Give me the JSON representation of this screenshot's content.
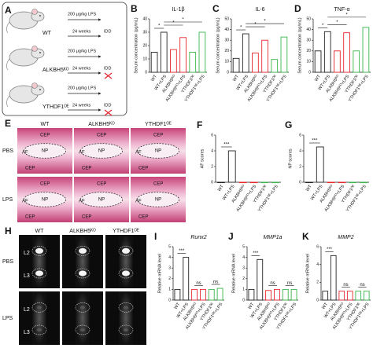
{
  "schematic": {
    "letter": "A",
    "groups": [
      "WT",
      "ALKBH5ᴷᴼ",
      "YTHDF1ᴼᴱ"
    ],
    "treatment": "200 μg/kg LPS",
    "duration": "24 weeks",
    "outcome": "IDD"
  },
  "histology": {
    "letter": "E",
    "columns": [
      "WT",
      "ALKBH5ᴷᴼ",
      "YTHDF1ᴼᴱ"
    ],
    "rows": [
      "PBS",
      "LPS"
    ],
    "regions": {
      "np": "NP",
      "af": "AF",
      "cep": "CEP"
    }
  },
  "mri": {
    "letter": "H",
    "columns": [
      "WT",
      "ALKBH5ᴷᴼ",
      "YTHDF1ᴼᴱ"
    ],
    "rows": [
      "PBS",
      "LPS"
    ],
    "levels": [
      "L2",
      "L3"
    ]
  },
  "chart_data": [
    {
      "type": "bar",
      "letter": "B",
      "title": "IL-1β",
      "ylabel": "Serum concentration (pg/mL)",
      "categories": [
        "WT",
        "WT+LPS",
        "ALKBH5ᴷᴼ",
        "ALKBH5ᴷᴼ+LPS",
        "YTHDF1ᴼᴱ",
        "YTHDF1ᴼᴱ+LPS"
      ],
      "values": [
        15,
        30,
        17,
        26,
        15,
        30
      ],
      "colors": [
        "#222222",
        "#222222",
        "#e8262c",
        "#e8262c",
        "#39b54a",
        "#39b54a"
      ],
      "ylim": [
        0,
        40
      ],
      "yticks": [
        0,
        10,
        20,
        30,
        40
      ],
      "annotations": [
        "*",
        "*",
        "*"
      ]
    },
    {
      "type": "bar",
      "letter": "C",
      "title": "IL-6",
      "ylabel": "Serum concentration (pg/mL)",
      "categories": [
        "WT",
        "WT+LPS",
        "ALKBH5ᴷᴼ",
        "ALKBH5ᴷᴼ+LPS",
        "YTHDF1ᴼᴱ",
        "YTHDF1ᴼᴱ+LPS"
      ],
      "values": [
        13,
        36,
        18,
        30,
        12,
        33
      ],
      "colors": [
        "#222222",
        "#222222",
        "#e8262c",
        "#e8262c",
        "#39b54a",
        "#39b54a"
      ],
      "ylim": [
        0,
        50
      ],
      "yticks": [
        0,
        10,
        20,
        30,
        40,
        50
      ],
      "annotations": [
        "*",
        "*",
        "*"
      ]
    },
    {
      "type": "bar",
      "letter": "D",
      "title": "TNF-α",
      "ylabel": "Serum concentration (pg/mL)",
      "categories": [
        "WT",
        "WT+LPS",
        "ALKBH5ᴷᴼ",
        "ALKBH5ᴷᴼ+LPS",
        "YTHDF1ᴼᴱ",
        "YTHDF1ᴼᴱ+LPS"
      ],
      "values": [
        20,
        38,
        20,
        37,
        20,
        42
      ],
      "colors": [
        "#222222",
        "#222222",
        "#e8262c",
        "#e8262c",
        "#39b54a",
        "#39b54a"
      ],
      "ylim": [
        0,
        50
      ],
      "yticks": [
        0,
        10,
        20,
        30,
        40,
        50
      ],
      "annotations": [
        "*",
        "*",
        "*"
      ]
    },
    {
      "type": "bar",
      "letter": "F",
      "ylabel": "AF scores",
      "categories": [
        "WT",
        "WT+LPS",
        "ALKBH5ᴷᴼ",
        "ALKBH5ᴷᴼ+LPS",
        "YTHDF1ᴼᴱ",
        "YTHDF1ᴼᴱ+LPS"
      ],
      "values": [
        0,
        4,
        0,
        0,
        0,
        0
      ],
      "colors": [
        "#222222",
        "#222222",
        "#e8262c",
        "#e8262c",
        "#39b54a",
        "#39b54a"
      ],
      "ylim": [
        0,
        6
      ],
      "yticks": [
        0,
        2,
        4,
        6
      ],
      "annotations": [
        "***"
      ]
    },
    {
      "type": "bar",
      "letter": "G",
      "ylabel": "NP scores",
      "categories": [
        "WT",
        "WT+LPS",
        "ALKBH5ᴷᴼ",
        "ALKBH5ᴷᴼ+LPS",
        "YTHDF1ᴼᴱ",
        "YTHDF1ᴼᴱ+LPS"
      ],
      "values": [
        0,
        4.5,
        0,
        0,
        0,
        0
      ],
      "colors": [
        "#222222",
        "#222222",
        "#e8262c",
        "#e8262c",
        "#39b54a",
        "#39b54a"
      ],
      "ylim": [
        0,
        6
      ],
      "yticks": [
        0,
        2,
        4,
        6
      ],
      "annotations": [
        "***"
      ]
    },
    {
      "type": "bar",
      "letter": "I",
      "title": "Runx2",
      "ylabel": "Relative mRNA level",
      "categories": [
        "WT",
        "WT+LPS",
        "ALKBH5ᴷᴼ",
        "ALKBH5ᴷᴼ+LPS",
        "YTHDF1ᴼᴱ",
        "YTHDF1ᴼᴱ+LPS"
      ],
      "values": [
        1,
        4,
        1,
        1,
        1,
        1.1
      ],
      "colors": [
        "#222222",
        "#222222",
        "#e8262c",
        "#e8262c",
        "#39b54a",
        "#39b54a"
      ],
      "ylim": [
        0,
        5
      ],
      "yticks": [
        0,
        1,
        2,
        3,
        4,
        5
      ],
      "annotations": [
        "***",
        "ns",
        "ns"
      ]
    },
    {
      "type": "bar",
      "letter": "J",
      "title": "MMP1a",
      "ylabel": "Relative mRNA level",
      "categories": [
        "WT",
        "WT+LPS",
        "ALKBH5ᴷᴼ",
        "ALKBH5ᴷᴼ+LPS",
        "YTHDF1ᴼᴱ",
        "YTHDF1ᴼᴱ+LPS"
      ],
      "values": [
        1,
        3.8,
        0.9,
        1,
        1,
        1
      ],
      "colors": [
        "#222222",
        "#222222",
        "#e8262c",
        "#e8262c",
        "#39b54a",
        "#39b54a"
      ],
      "ylim": [
        0,
        5
      ],
      "yticks": [
        0,
        1,
        2,
        3,
        4,
        5
      ],
      "annotations": [
        "***",
        "ns",
        "ns"
      ]
    },
    {
      "type": "bar",
      "letter": "K",
      "title": "MMP2",
      "ylabel": "Relative mRNA level",
      "categories": [
        "WT",
        "WT+LPS",
        "ALKBH5ᴷᴼ",
        "ALKBH5ᴷᴼ+LPS",
        "YTHDF1ᴼᴱ",
        "YTHDF1ᴼᴱ+LPS"
      ],
      "values": [
        1,
        5,
        1,
        1,
        1,
        1
      ],
      "colors": [
        "#222222",
        "#222222",
        "#e8262c",
        "#e8262c",
        "#39b54a",
        "#39b54a"
      ],
      "ylim": [
        0,
        6
      ],
      "yticks": [
        0,
        2,
        4,
        6
      ],
      "annotations": [
        "***",
        "ns",
        "ns"
      ]
    }
  ]
}
